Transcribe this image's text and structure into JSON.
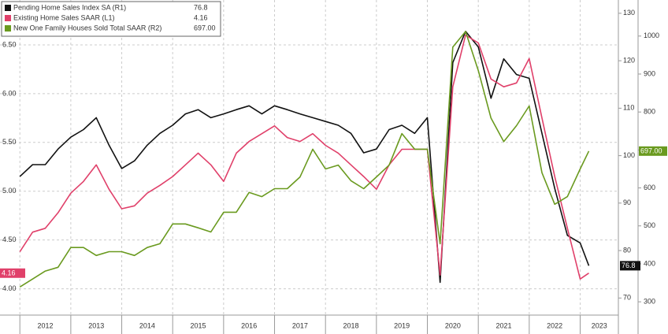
{
  "chart_data": {
    "type": "line",
    "x": [
      2012,
      2012.25,
      2012.5,
      2012.75,
      2013,
      2013.25,
      2013.5,
      2013.75,
      2014,
      2014.25,
      2014.5,
      2014.75,
      2015,
      2015.25,
      2015.5,
      2015.75,
      2016,
      2016.25,
      2016.5,
      2016.75,
      2017,
      2017.25,
      2017.5,
      2017.75,
      2018,
      2018.25,
      2018.5,
      2018.75,
      2019,
      2019.25,
      2019.5,
      2019.75,
      2020,
      2020.25,
      2020.5,
      2020.75,
      2021,
      2021.25,
      2021.5,
      2021.75,
      2022,
      2022.25,
      2022.5,
      2022.75,
      2023,
      2023.17
    ],
    "xlim": [
      2011.61,
      2023.75
    ],
    "xticks": [
      2012,
      2013,
      2014,
      2015,
      2016,
      2017,
      2018,
      2019,
      2020,
      2021,
      2022,
      2023
    ],
    "ylim": [
      3.73,
      6.96
    ],
    "yticks": [
      {
        "value": 4,
        "label": "4.00"
      },
      {
        "value": 4.5,
        "label": "4.50"
      },
      {
        "value": 5,
        "label": "5.00"
      },
      {
        "value": 5.5,
        "label": "5.50"
      },
      {
        "value": 6,
        "label": "6.00"
      },
      {
        "value": 6.5,
        "label": "6.50"
      }
    ],
    "y2lim": [
      66.4,
      132.8
    ],
    "y2ticks": [
      70,
      80,
      90,
      100,
      110,
      120,
      130
    ],
    "y3lim": [
      265,
      1095
    ],
    "y3ticks": [
      300,
      400,
      500,
      600,
      700,
      800,
      900,
      1000
    ],
    "grid": true,
    "series": [
      {
        "name": "Pending Home Sales Index SA (R1)",
        "color": "#111111",
        "axis": "y2",
        "last_label": "76.8",
        "values": [
          95.6,
          98.1,
          98.1,
          101.4,
          103.9,
          105.5,
          108,
          102.2,
          97.3,
          98.9,
          102.2,
          104.7,
          106.4,
          108.8,
          109.7,
          108,
          108.8,
          109.7,
          110.5,
          108.8,
          110.5,
          109.7,
          108.8,
          108,
          107.2,
          106.4,
          104.7,
          100.6,
          101.4,
          105.5,
          106.4,
          104.7,
          108,
          73.3,
          119.6,
          126.2,
          122.9,
          112.1,
          120.4,
          117.1,
          116.3,
          104.7,
          93.1,
          83.2,
          81.6,
          76.8
        ]
      },
      {
        "name": "Existing Home Sales SAAR (L1)",
        "color": "#e0406a",
        "axis": "y",
        "last_label": "4.16",
        "values": [
          4.38,
          4.58,
          4.62,
          4.78,
          4.98,
          5.1,
          5.27,
          5.02,
          4.82,
          4.85,
          4.98,
          5.06,
          5.15,
          5.27,
          5.39,
          5.27,
          5.1,
          5.39,
          5.51,
          5.59,
          5.67,
          5.55,
          5.51,
          5.59,
          5.47,
          5.39,
          5.27,
          5.15,
          5.02,
          5.27,
          5.43,
          5.43,
          5.43,
          4.14,
          6.07,
          6.6,
          6.52,
          6.15,
          6.07,
          6.11,
          6.36,
          5.75,
          5.15,
          4.62,
          4.1,
          4.16
        ]
      },
      {
        "name": "New One Family Houses Sold Total SAAR (R2)",
        "color": "#6a9a1f",
        "axis": "y3",
        "last_label": "697.00",
        "values": [
          339,
          360,
          381,
          391,
          443,
          443,
          422,
          432,
          432,
          422,
          443,
          453,
          505,
          505,
          495,
          484,
          536,
          536,
          588,
          577,
          598,
          598,
          629,
          702,
          650,
          660,
          619,
          598,
          629,
          660,
          743,
          702,
          702,
          453,
          971,
          1012,
          909,
          784,
          722,
          764,
          816,
          640,
          557,
          577,
          650,
          697
        ]
      }
    ]
  }
}
